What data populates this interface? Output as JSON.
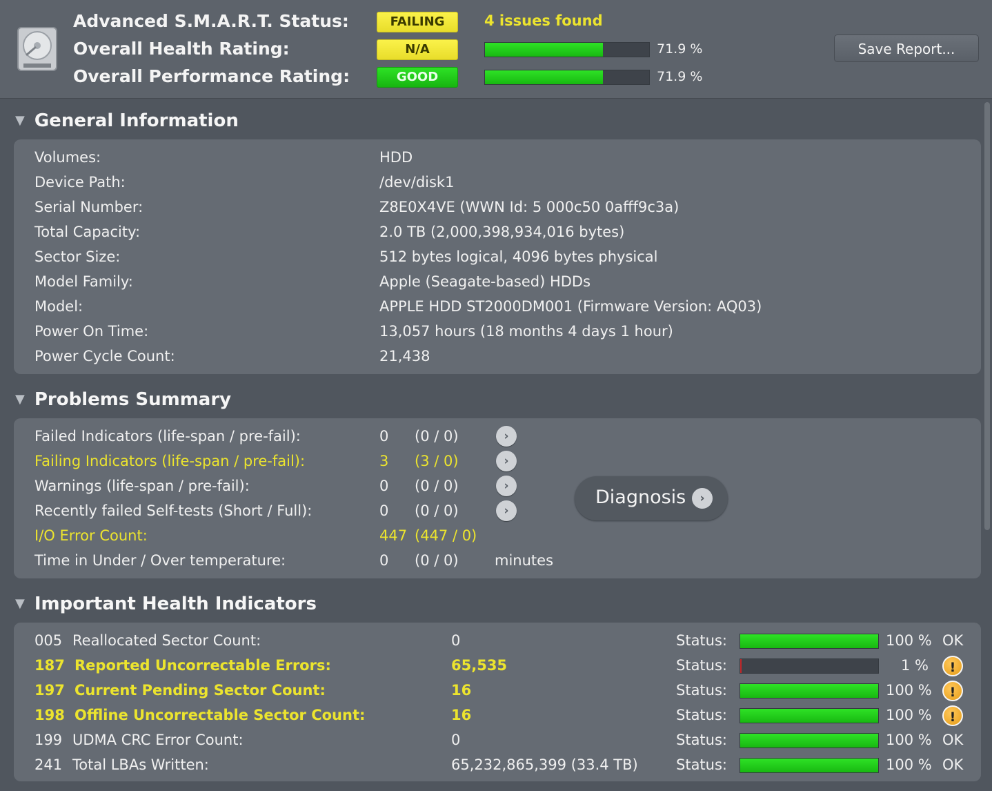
{
  "header": {
    "smart_label": "Advanced S.M.A.R.T. Status:",
    "health_label": "Overall Health Rating:",
    "performance_label": "Overall Performance Rating:",
    "smart_status": "FAILING",
    "health_status": "N/A",
    "performance_status": "GOOD",
    "issues": "4 issues found",
    "health_pct": "71.9 %",
    "health_value": 71.9,
    "performance_pct": "71.9 %",
    "performance_value": 71.9,
    "save_button": "Save Report...",
    "colors": {
      "warning_yellow": "#ece42e",
      "good_green": "#22cc1a",
      "failing_red": "#c0282a"
    }
  },
  "general": {
    "title": "General Information",
    "rows": [
      {
        "label": "Volumes:",
        "value": "HDD"
      },
      {
        "label": "Device Path:",
        "value": "/dev/disk1"
      },
      {
        "label": "Serial Number:",
        "value": "Z8E0X4VE (WWN Id: 5 000c50 0afff9c3a)"
      },
      {
        "label": "Total Capacity:",
        "value": "2.0 TB (2,000,398,934,016 bytes)"
      },
      {
        "label": "Sector Size:",
        "value": "512 bytes logical, 4096 bytes physical"
      },
      {
        "label": "Model Family:",
        "value": "Apple (Seagate-based) HDDs"
      },
      {
        "label": "Model:",
        "value": "APPLE HDD ST2000DM001  (Firmware Version: AQ03)"
      },
      {
        "label": "Power On Time:",
        "value": "13,057 hours (18 months 4 days 1 hour)"
      },
      {
        "label": "Power Cycle Count:",
        "value": "21,438"
      }
    ]
  },
  "problems": {
    "title": "Problems Summary",
    "rows": [
      {
        "label": "Failed Indicators (life-span / pre-fail):",
        "count": "0",
        "detail": "(0 / 0)",
        "unit": ""
      },
      {
        "label": "Failing Indicators (life-span / pre-fail):",
        "count": "3",
        "detail": "(3 / 0)",
        "unit": ""
      },
      {
        "label": "Warnings (life-span / pre-fail):",
        "count": "0",
        "detail": "(0 / 0)",
        "unit": ""
      },
      {
        "label": "Recently failed Self-tests (Short / Full):",
        "count": "0",
        "detail": "(0 / 0)",
        "unit": ""
      },
      {
        "label": "I/O Error Count:",
        "count": "447",
        "detail": "(447 / 0)",
        "unit": ""
      },
      {
        "label": "Time in Under / Over temperature:",
        "count": "0",
        "detail": "(0 / 0)",
        "unit": "minutes"
      }
    ],
    "diagnosis_button": "Diagnosis"
  },
  "health": {
    "title": "Important Health Indicators",
    "status_label": "Status:",
    "rows": [
      {
        "id": "005",
        "name": "Reallocated Sector Count:",
        "value": "0",
        "pct": "100 %",
        "pct_value": 100,
        "status": "OK"
      },
      {
        "id": "187",
        "name": "Reported Uncorrectable Errors:",
        "value": "65,535",
        "pct": "1 %",
        "pct_value": 1,
        "status": "!"
      },
      {
        "id": "197",
        "name": "Current Pending Sector Count:",
        "value": "16",
        "pct": "100 %",
        "pct_value": 100,
        "status": "!"
      },
      {
        "id": "198",
        "name": "Offline Uncorrectable Sector Count:",
        "value": "16",
        "pct": "100 %",
        "pct_value": 100,
        "status": "!"
      },
      {
        "id": "199",
        "name": "UDMA CRC Error Count:",
        "value": "0",
        "pct": "100 %",
        "pct_value": 100,
        "status": "OK"
      },
      {
        "id": "241",
        "name": "Total LBAs Written:",
        "value": "65,232,865,399 (33.4 TB)",
        "pct": "100 %",
        "pct_value": 100,
        "status": "OK"
      }
    ]
  }
}
